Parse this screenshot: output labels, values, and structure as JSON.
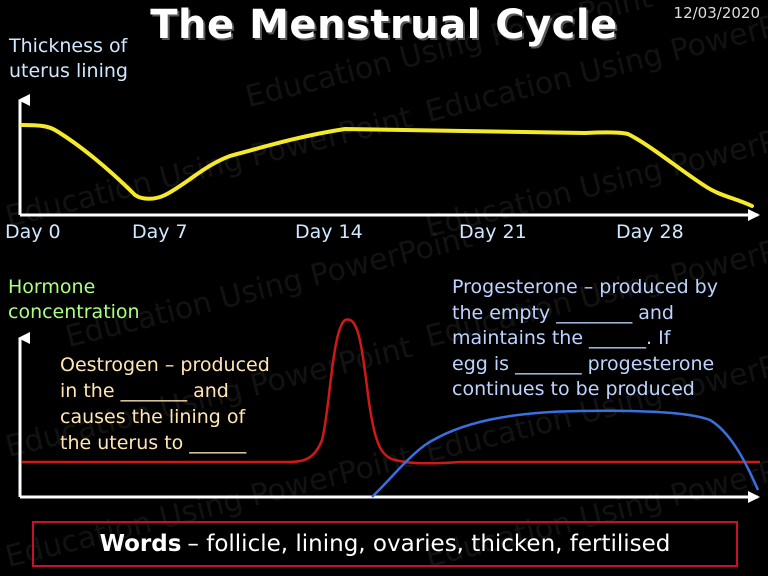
{
  "title": "The Menstrual Cycle",
  "date": "12/03/2020",
  "watermark": "Education Using PowerPoint",
  "top_graph": {
    "ylabel_line1": "Thickness of",
    "ylabel_line2": "uterus lining",
    "days": [
      "Day 0",
      "Day 7",
      "Day 14",
      "Day 21",
      "Day 28"
    ],
    "line_color": "#f5ea2a"
  },
  "bottom_graph": {
    "ylabel_line1": "Hormone",
    "ylabel_line2": "concentration",
    "oestrogen_text": [
      "Oestrogen – produced",
      "in the _______ and",
      "causes the lining of",
      "the uterus to ______"
    ],
    "progesterone_text": [
      "Progesterone – produced by",
      "the empty ________ and",
      "maintains the ______.  If",
      "egg is _______ progesterone",
      "continues to be produced"
    ],
    "oestrogen_color": "#d01818",
    "progesterone_color": "#3a6fe0"
  },
  "words": {
    "label": "Words",
    "list": "– follicle, lining, ovaries, thicken, fertilised"
  },
  "colors": {
    "background": "#000000",
    "box_border": "#c8102e"
  }
}
